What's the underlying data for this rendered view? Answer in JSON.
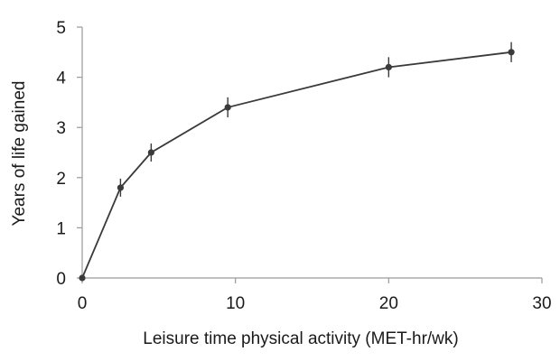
{
  "chart_data": {
    "type": "line",
    "title": "",
    "xlabel": "Leisure time physical activity (MET-hr/wk)",
    "ylabel": "Years of life gained",
    "xlim": [
      0,
      30
    ],
    "ylim": [
      0,
      5
    ],
    "xticks": [
      0,
      10,
      20,
      30
    ],
    "yticks": [
      0,
      1,
      2,
      3,
      4,
      5
    ],
    "grid": false,
    "series": [
      {
        "name": "Years of life gained",
        "x": [
          0,
          2.5,
          4.5,
          9.5,
          20,
          28
        ],
        "y": [
          0,
          1.8,
          2.5,
          3.4,
          4.2,
          4.5
        ],
        "error": [
          0,
          0.18,
          0.18,
          0.2,
          0.2,
          0.2
        ]
      }
    ],
    "colors": {
      "line": "#3a3a3a",
      "marker": "#3a3a3a",
      "axis": "#9a9a9a",
      "text": "#1a1a1a"
    }
  }
}
